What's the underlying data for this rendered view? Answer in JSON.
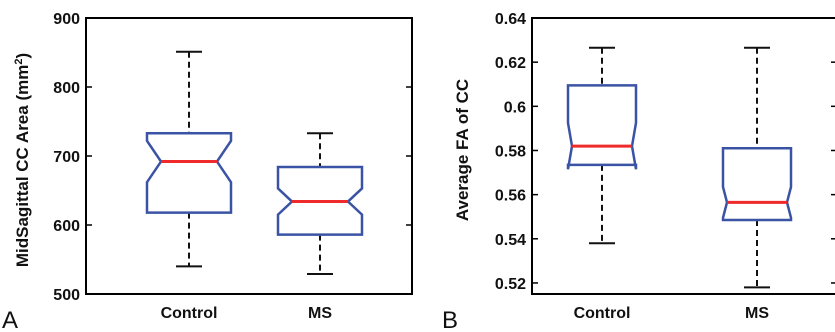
{
  "panels": [
    {
      "letter": "A",
      "ylabel_main": "MidSagittal CC Area (mm",
      "ylabel_sup": "2",
      "ylabel_end": ")"
    },
    {
      "letter": "B",
      "ylabel_main": "Average FA of CC",
      "ylabel_sup": "",
      "ylabel_end": ""
    }
  ],
  "colors": {
    "box": "#3a53a4",
    "median": "#ee2a2a",
    "whisker": "#111111",
    "axis": "#000000"
  },
  "chart_data": [
    {
      "type": "box",
      "categories": [
        "Control",
        "MS"
      ],
      "ylim": [
        500,
        900
      ],
      "yticks": [
        500,
        600,
        700,
        800,
        900
      ],
      "ytick_labels": [
        "500",
        "600",
        "700",
        "800",
        "900"
      ],
      "notched": true,
      "boxes": [
        {
          "whisker_low": 540,
          "q1": 618,
          "median": 692,
          "q3": 733,
          "whisker_high": 851,
          "notch_low": 662,
          "notch_high": 722
        },
        {
          "whisker_low": 529,
          "q1": 586,
          "median": 634,
          "q3": 684,
          "whisker_high": 733,
          "notch_low": 615,
          "notch_high": 653
        }
      ]
    },
    {
      "type": "box",
      "categories": [
        "Control",
        "MS"
      ],
      "ylim": [
        0.515,
        0.64
      ],
      "yticks": [
        0.52,
        0.54,
        0.56,
        0.58,
        0.6,
        0.62,
        0.64
      ],
      "ytick_labels": [
        "0.52",
        "0.54",
        "0.56",
        "0.58",
        "0.6",
        "0.62",
        "0.64"
      ],
      "notched": true,
      "boxes": [
        {
          "whisker_low": 0.538,
          "q1": 0.5735,
          "median": 0.582,
          "q3": 0.6095,
          "whisker_high": 0.6265,
          "notch_low": 0.5715,
          "notch_high": 0.5925
        },
        {
          "whisker_low": 0.518,
          "q1": 0.5485,
          "median": 0.5565,
          "q3": 0.581,
          "whisker_high": 0.6265,
          "notch_low": 0.5495,
          "notch_high": 0.5635
        }
      ]
    }
  ]
}
